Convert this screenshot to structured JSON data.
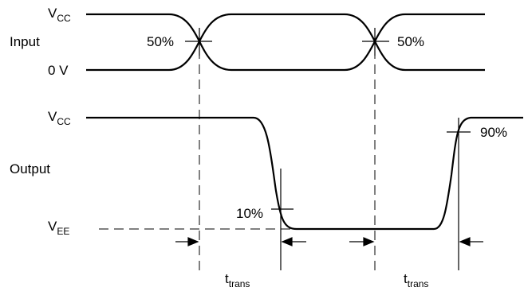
{
  "labels": {
    "input": "Input",
    "output": "Output",
    "vcc_main": "V",
    "vcc_sub": "CC",
    "zero_v": "0 V",
    "vee_main": "V",
    "vee_sub": "EE",
    "pct50": "50%",
    "pct10": "10%",
    "pct90": "90%",
    "t_main": "t",
    "t_sub": "trans"
  }
}
